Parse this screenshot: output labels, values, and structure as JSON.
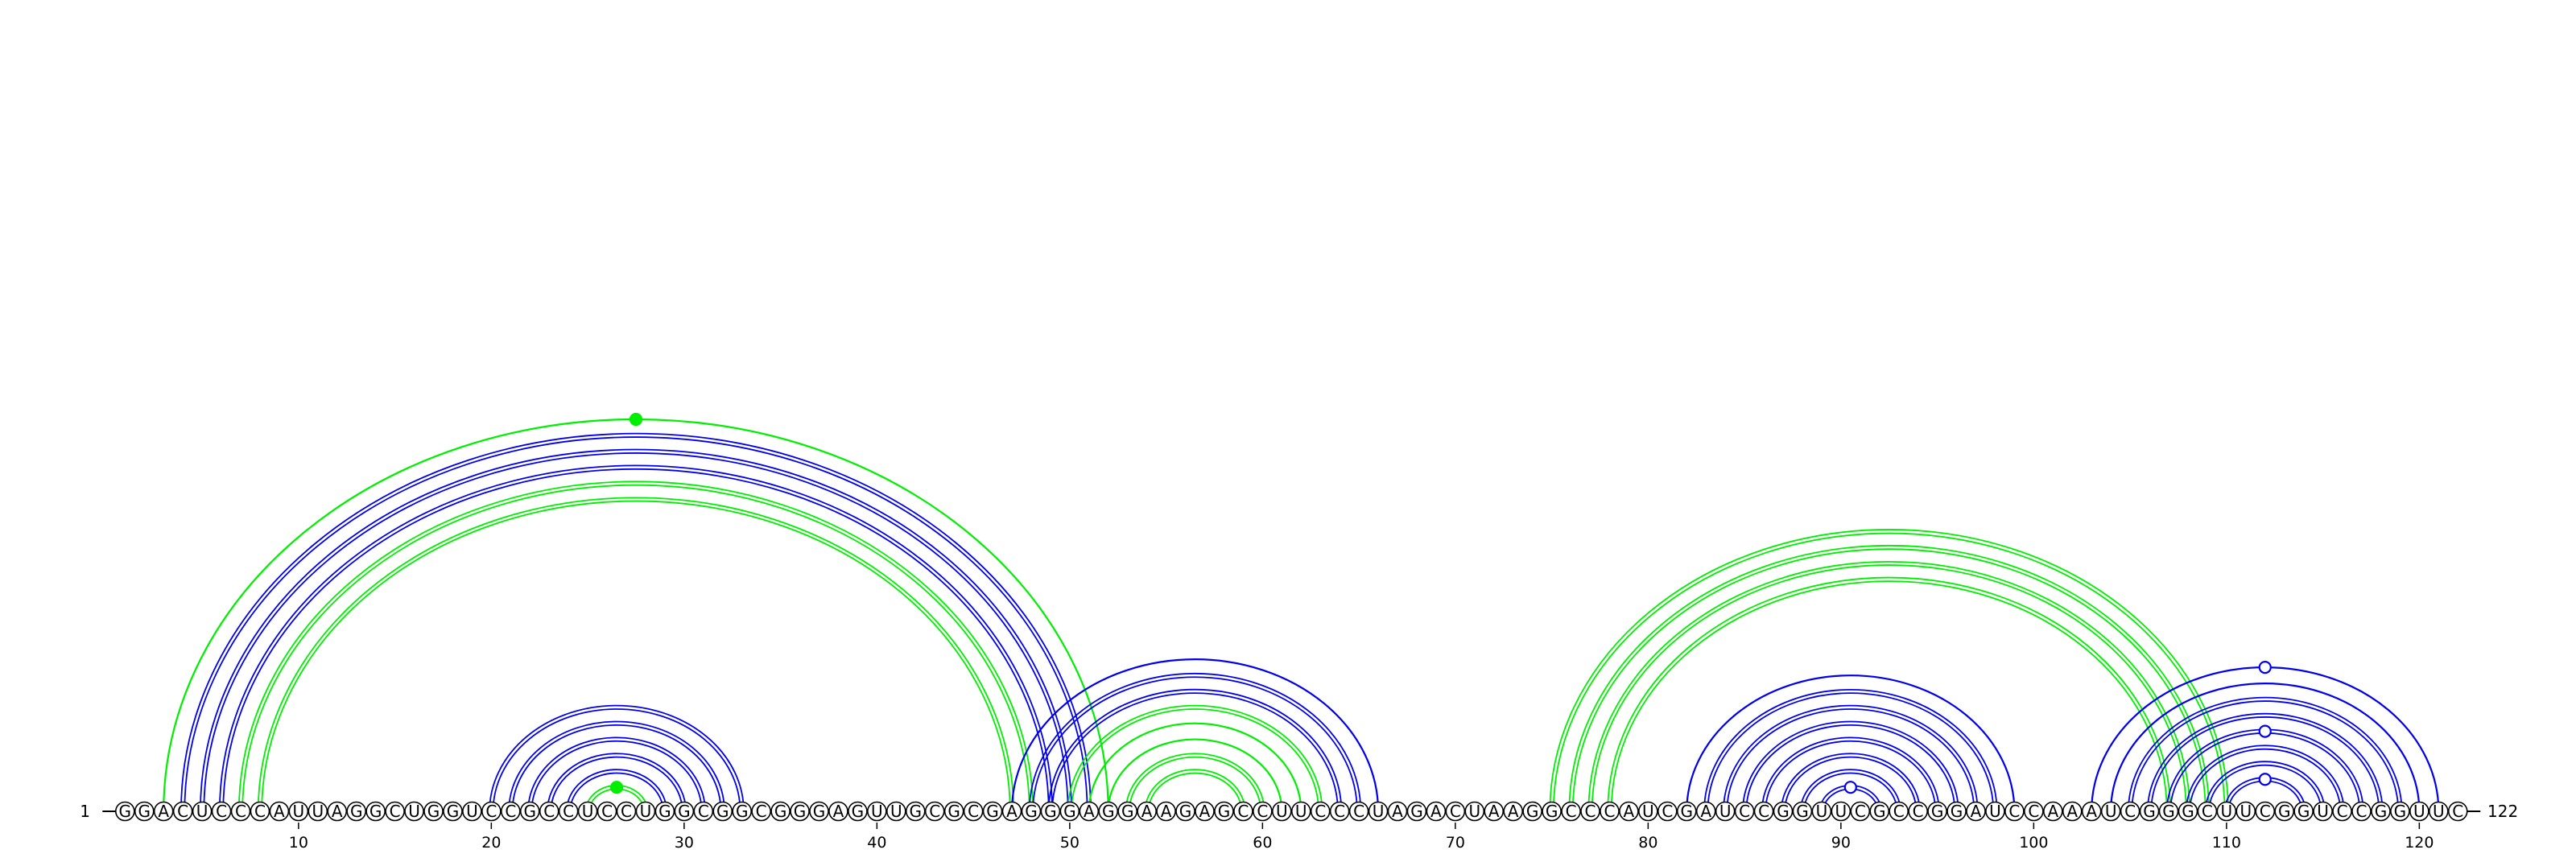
{
  "sequence": "GGACUCCCAUUAGGCUGGUCCGCCUCCUGGCGGCGGGAGUUGCGCGAGGGAGGAAGAGCCUUCCCUAGACUAAGGCCCAUCGAUCCGGUUCGCCGGAUCCAAAUCGGGCUUCGGUCCGGUUC",
  "start_label": "1",
  "end_label": "122",
  "ticks": [
    {
      "pos": 10,
      "label": "10"
    },
    {
      "pos": 20,
      "label": "20"
    },
    {
      "pos": 30,
      "label": "30"
    },
    {
      "pos": 40,
      "label": "40"
    },
    {
      "pos": 50,
      "label": "50"
    },
    {
      "pos": 60,
      "label": "60"
    },
    {
      "pos": 70,
      "label": "70"
    },
    {
      "pos": 80,
      "label": "80"
    },
    {
      "pos": 90,
      "label": "90"
    },
    {
      "pos": 100,
      "label": "100"
    },
    {
      "pos": 110,
      "label": "110"
    },
    {
      "pos": 120,
      "label": "120"
    }
  ],
  "colors": {
    "blue": "#0000ee",
    "green": "#00ee00",
    "nucleotide_stroke": "#000000",
    "nucleotide_fill": "#ffffff",
    "line": "#000000"
  },
  "arcs": [
    {
      "i": 3,
      "j": 52,
      "color": "green",
      "double": false
    },
    {
      "i": 4,
      "j": 51,
      "color": "blue",
      "double": true
    },
    {
      "i": 5,
      "j": 50,
      "color": "blue",
      "double": true
    },
    {
      "i": 6,
      "j": 49,
      "color": "blue",
      "double": true
    },
    {
      "i": 7,
      "j": 48,
      "color": "green",
      "double": true
    },
    {
      "i": 8,
      "j": 47,
      "color": "green",
      "double": true
    },
    {
      "i": 20,
      "j": 33,
      "color": "blue",
      "double": true
    },
    {
      "i": 21,
      "j": 32,
      "color": "blue",
      "double": true
    },
    {
      "i": 22,
      "j": 31,
      "color": "blue",
      "double": true
    },
    {
      "i": 23,
      "j": 30,
      "color": "blue",
      "double": true
    },
    {
      "i": 24,
      "j": 29,
      "color": "blue",
      "double": true
    },
    {
      "i": 25,
      "j": 28,
      "color": "green",
      "double": true
    },
    {
      "i": 47,
      "j": 66,
      "color": "blue",
      "double": false
    },
    {
      "i": 48,
      "j": 65,
      "color": "blue",
      "double": true
    },
    {
      "i": 49,
      "j": 64,
      "color": "blue",
      "double": true
    },
    {
      "i": 50,
      "j": 63,
      "color": "green",
      "double": true
    },
    {
      "i": 51,
      "j": 62,
      "color": "green",
      "double": false
    },
    {
      "i": 52,
      "j": 61,
      "color": "green",
      "double": false
    },
    {
      "i": 53,
      "j": 60,
      "color": "green",
      "double": true
    },
    {
      "i": 54,
      "j": 59,
      "color": "green",
      "double": true
    },
    {
      "i": 75,
      "j": 110,
      "color": "green",
      "double": true
    },
    {
      "i": 76,
      "j": 109,
      "color": "green",
      "double": true
    },
    {
      "i": 77,
      "j": 108,
      "color": "green",
      "double": true
    },
    {
      "i": 78,
      "j": 107,
      "color": "green",
      "double": true
    },
    {
      "i": 82,
      "j": 99,
      "color": "blue",
      "double": false
    },
    {
      "i": 83,
      "j": 98,
      "color": "blue",
      "double": true
    },
    {
      "i": 84,
      "j": 97,
      "color": "blue",
      "double": true
    },
    {
      "i": 85,
      "j": 96,
      "color": "blue",
      "double": true
    },
    {
      "i": 86,
      "j": 95,
      "color": "blue",
      "double": true
    },
    {
      "i": 87,
      "j": 94,
      "color": "blue",
      "double": true
    },
    {
      "i": 88,
      "j": 93,
      "color": "blue",
      "double": true
    },
    {
      "i": 89,
      "j": 92,
      "color": "blue",
      "double": true
    },
    {
      "i": 103,
      "j": 121,
      "color": "blue",
      "double": false
    },
    {
      "i": 104,
      "j": 120,
      "color": "blue",
      "double": false
    },
    {
      "i": 105,
      "j": 119,
      "color": "blue",
      "double": true
    },
    {
      "i": 106,
      "j": 118,
      "color": "blue",
      "double": true
    },
    {
      "i": 107,
      "j": 117,
      "color": "blue",
      "double": true
    },
    {
      "i": 108,
      "j": 116,
      "color": "blue",
      "double": true
    },
    {
      "i": 109,
      "j": 115,
      "color": "blue",
      "double": true
    },
    {
      "i": 110,
      "j": 114,
      "color": "blue",
      "double": true
    }
  ],
  "markers": [
    {
      "i": 3,
      "j": 52,
      "color": "green",
      "filled": true
    },
    {
      "i": 25,
      "j": 28,
      "color": "green",
      "filled": true
    },
    {
      "i": 89,
      "j": 92,
      "color": "blue",
      "filled": false
    },
    {
      "i": 103,
      "j": 121,
      "color": "blue",
      "filled": false
    },
    {
      "i": 107,
      "j": 117,
      "color": "blue",
      "filled": false
    },
    {
      "i": 110,
      "j": 114,
      "color": "blue",
      "filled": false
    }
  ]
}
